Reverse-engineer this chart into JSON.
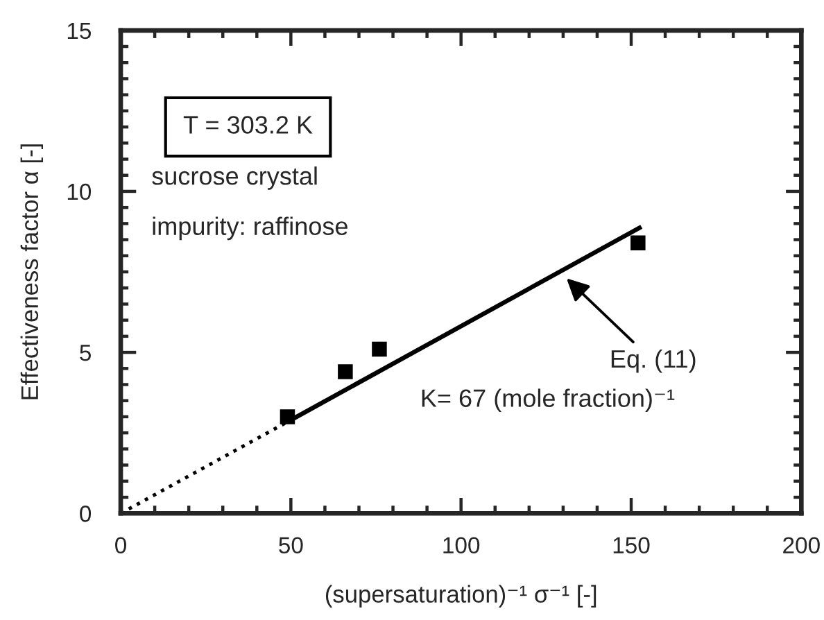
{
  "chart_data": {
    "type": "scatter",
    "xlabel": "(supersaturation)⁻¹ σ⁻¹ [-]",
    "ylabel": "Effectiveness factor α [-]",
    "xlim": [
      0,
      200
    ],
    "ylim": [
      0,
      15
    ],
    "xticks": [
      0,
      {
        "value": 10,
        "label": null
      },
      {
        "value": 20,
        "label": null
      },
      {
        "value": 30,
        "label": null
      },
      {
        "value": 40,
        "label": null
      },
      50,
      {
        "value": 60,
        "label": null
      },
      {
        "value": 70,
        "label": null
      },
      {
        "value": 80,
        "label": null
      },
      {
        "value": 90,
        "label": null
      },
      100,
      {
        "value": 110,
        "label": null
      },
      {
        "value": 120,
        "label": null
      },
      {
        "value": 130,
        "label": null
      },
      {
        "value": 140,
        "label": null
      },
      150,
      {
        "value": 160,
        "label": null
      },
      {
        "value": 170,
        "label": null
      },
      {
        "value": 180,
        "label": null
      },
      {
        "value": 190,
        "label": null
      },
      200
    ],
    "yticks": [
      0,
      {
        "value": 0.5,
        "label": null
      },
      {
        "value": 1,
        "label": null
      },
      {
        "value": 1.5,
        "label": null
      },
      {
        "value": 2,
        "label": null
      },
      {
        "value": 2.5,
        "label": null
      },
      {
        "value": 3,
        "label": null
      },
      {
        "value": 3.5,
        "label": null
      },
      {
        "value": 4,
        "label": null
      },
      {
        "value": 4.5,
        "label": null
      },
      5,
      {
        "value": 5.5,
        "label": null
      },
      {
        "value": 6,
        "label": null
      },
      {
        "value": 6.5,
        "label": null
      },
      {
        "value": 7,
        "label": null
      },
      {
        "value": 7.5,
        "label": null
      },
      {
        "value": 8,
        "label": null
      },
      {
        "value": 8.5,
        "label": null
      },
      {
        "value": 9,
        "label": null
      },
      {
        "value": 9.5,
        "label": null
      },
      10,
      {
        "value": 10.5,
        "label": null
      },
      {
        "value": 11,
        "label": null
      },
      {
        "value": 11.5,
        "label": null
      },
      {
        "value": 12,
        "label": null
      },
      {
        "value": 12.5,
        "label": null
      },
      {
        "value": 13,
        "label": null
      },
      {
        "value": 13.5,
        "label": null
      },
      {
        "value": 14,
        "label": null
      },
      {
        "value": 14.5,
        "label": null
      },
      15
    ],
    "series": [
      {
        "marker": "square",
        "color": "#000000",
        "x": [
          49,
          66,
          76,
          152
        ],
        "values": [
          3.0,
          4.4,
          5.1,
          8.4
        ]
      },
      {
        "type": "line",
        "line_style": "solid",
        "color": "#000000",
        "x": [
          50,
          153
        ],
        "values": [
          2.9,
          8.9
        ]
      },
      {
        "type": "line",
        "line_style": "dotted",
        "color": "#000000",
        "x": [
          0,
          50
        ],
        "values": [
          0,
          2.9
        ]
      }
    ],
    "annotations": [
      "T = 303.2 K",
      "sucrose crystal",
      "impurity: raffinose",
      {
        "text": "Eq. (11)",
        "x": 131,
        "y": 7.3
      },
      "K= 67 (mole fraction)⁻¹"
    ]
  }
}
